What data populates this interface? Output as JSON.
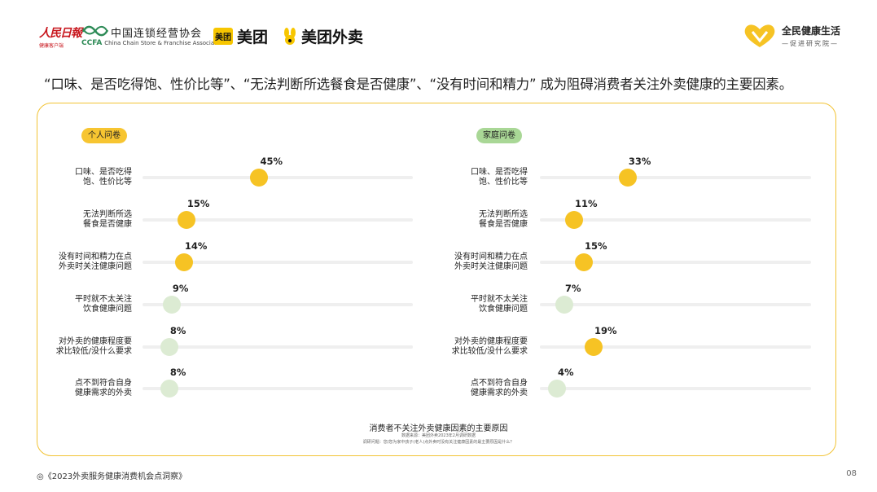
{
  "header": {
    "rmrb_logo": "人民日報",
    "rmrb_sub": "健康客户端",
    "ccfa_abbr": "CCFA",
    "ccfa_cn": "中国连锁经营协会",
    "ccfa_en": "China Chain Store & Franchise Association",
    "meituan_badge": "美团",
    "meituan_name": "美团",
    "waimai_name": "美团外卖",
    "right_title": "全民健康生活",
    "right_sub": "—促进研究院—"
  },
  "headline": "“口味、是否吃得饱、性价比等”、“无法判断所选餐食是否健康”、“没有时间和精力” 成为阻碍消费者关注外卖健康的主要因素。",
  "colors": {
    "accent": "#f7c531",
    "dot_high": "#f6c324",
    "dot_low": "#dcebd3",
    "panel_border": "#f2c335",
    "family_pill": "#a9d796"
  },
  "chart_data": [
    {
      "type": "scatter",
      "title": "个人问卷",
      "categories": [
        [
          "口味、是否吃得",
          "饱、性价比等"
        ],
        [
          "无法判断所选",
          "餐食是否健康"
        ],
        [
          "没有时间和精力在点",
          "外卖时关注健康问题"
        ],
        [
          "平时就不太关注",
          "饮食健康问题"
        ],
        [
          "对外卖的健康程度要",
          "求比较低/没什么要求"
        ],
        [
          "点不到符合自身",
          "健康需求的外卖"
        ]
      ],
      "values": [
        45,
        15,
        14,
        9,
        8,
        8
      ],
      "labels": [
        "45%",
        "15%",
        "14%",
        "9%",
        "8%",
        "8%"
      ],
      "xlim": [
        0,
        100
      ]
    },
    {
      "type": "scatter",
      "title": "家庭问卷",
      "categories": [
        [
          "口味、是否吃得",
          "饱、性价比等"
        ],
        [
          "无法判断所选",
          "餐食是否健康"
        ],
        [
          "没有时间和精力在点",
          "外卖时关注健康问题"
        ],
        [
          "平时就不太关注",
          "饮食健康问题"
        ],
        [
          "对外卖的健康程度要",
          "求比较低/没什么要求"
        ],
        [
          "点不到符合自身",
          "健康需求的外卖"
        ]
      ],
      "values": [
        33,
        11,
        15,
        7,
        19,
        4
      ],
      "labels": [
        "33%",
        "11%",
        "15%",
        "7%",
        "19%",
        "4%"
      ],
      "xlim": [
        0,
        100
      ]
    }
  ],
  "caption": {
    "title": "消费者不关注外卖健康因素的主要原因",
    "source": "数据来源：美团外卖2023年2月调研数据",
    "question": "调研问题：您/您为家中孩子(老人)点外卖时没有关注健康因素的最主要原因是什么？"
  },
  "footer": {
    "report_title": "◎《2023外卖服务健康消费机会点洞察》",
    "page_number": "08"
  }
}
